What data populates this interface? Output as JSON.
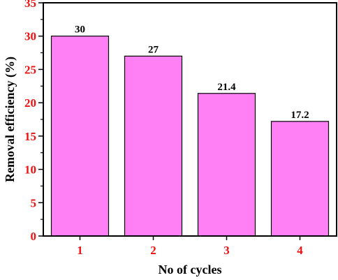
{
  "chart_data": {
    "type": "bar",
    "categories": [
      "1",
      "2",
      "3",
      "4"
    ],
    "values": [
      30,
      27,
      21.4,
      17.2
    ],
    "data_labels": [
      "30",
      "27",
      "21.4",
      "17.2"
    ],
    "xlabel": "No of cycles",
    "ylabel": "Removal efficiency (%)",
    "ylim": [
      0,
      35
    ],
    "yticks": [
      0,
      5,
      10,
      15,
      20,
      25,
      30,
      35
    ],
    "ytick_labels": [
      "0",
      "5",
      "10",
      "15",
      "20",
      "25",
      "30",
      "35"
    ],
    "grid": false,
    "legend": "none"
  },
  "colors": {
    "bar_fill": "#ff7ff5",
    "tick_label": "#ee1111",
    "axis": "#000000"
  }
}
